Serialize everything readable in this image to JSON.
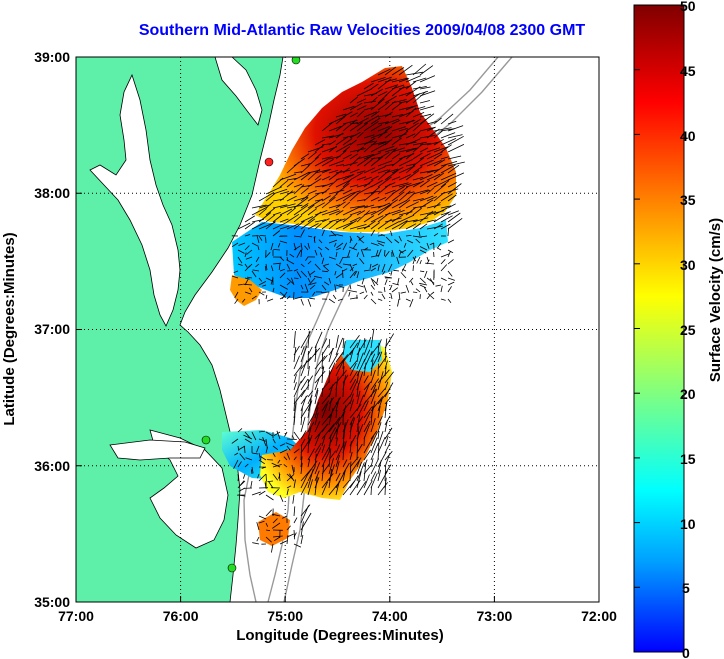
{
  "title": "Southern Mid-Atlantic Raw Velocities 2009/04/08 2300 GMT",
  "map": {
    "xlabel": "Longitude (Degrees:Minutes)",
    "ylabel": "Latitude (Degrees:Minutes)",
    "x_ticks": [
      "77:00",
      "76:00",
      "75:00",
      "74:00",
      "73:00",
      "72:00"
    ],
    "y_ticks": [
      "39:00",
      "38:00",
      "37:00",
      "36:00",
      "35:00"
    ],
    "lon_range": [
      -77,
      -72
    ],
    "lat_range": [
      35,
      39
    ],
    "grid": "dotted",
    "land_color": "#5ef0a8",
    "station_color_red": "#ff2020",
    "station_color_green": "#22dd22"
  },
  "colorbar": {
    "label": "Surface Velocity (cm/s)",
    "ticks": [
      "50",
      "45",
      "40",
      "35",
      "30",
      "25",
      "20",
      "15",
      "10",
      "5",
      "0"
    ],
    "range": [
      0,
      50
    ],
    "colors": [
      "#0000ff",
      "#00a0ff",
      "#00ffff",
      "#80ff80",
      "#ffff00",
      "#ff8000",
      "#ff0000",
      "#800000"
    ]
  }
}
